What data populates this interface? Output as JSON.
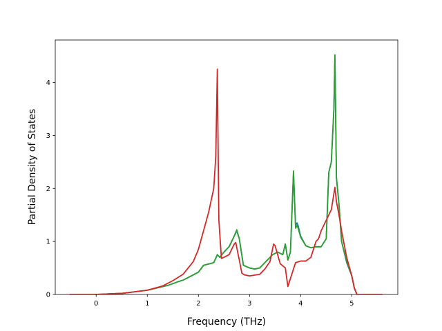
{
  "chart_data": {
    "type": "line",
    "title": "",
    "xlabel": "Frequency (THz)",
    "ylabel": "Partial Density of States",
    "xlim": [
      -0.8,
      5.9
    ],
    "ylim": [
      0,
      4.8
    ],
    "xticks": [
      0,
      1,
      2,
      3,
      4,
      5
    ],
    "yticks": [
      0,
      1,
      2,
      3,
      4
    ],
    "xtick_labels": [
      "0",
      "1",
      "2",
      "3",
      "4",
      "5"
    ],
    "ytick_labels": [
      "0",
      "1",
      "2",
      "3",
      "4"
    ],
    "grid": false,
    "legend": false,
    "series": [
      {
        "color": "#1f77b4",
        "x": [
          -0.52,
          0.0,
          0.5,
          1.0,
          1.4,
          1.6,
          1.7,
          1.8,
          2.0,
          2.1,
          2.3,
          2.37,
          2.42,
          2.5,
          2.6,
          2.7,
          2.75,
          2.8,
          2.88,
          3.0,
          3.1,
          3.2,
          3.3,
          3.45,
          3.55,
          3.65,
          3.7,
          3.75,
          3.8,
          3.86,
          3.9,
          3.93,
          3.95,
          4.0,
          4.1,
          4.2,
          4.3,
          4.4,
          4.5,
          4.55,
          4.6,
          4.65,
          4.67,
          4.7,
          4.75,
          4.8,
          4.9,
          5.0,
          5.05,
          5.1,
          5.6
        ],
        "y": [
          0.0,
          0.0,
          0.02,
          0.08,
          0.17,
          0.24,
          0.27,
          0.32,
          0.42,
          0.55,
          0.6,
          0.75,
          0.7,
          0.8,
          0.9,
          1.1,
          1.2,
          1.05,
          0.55,
          0.5,
          0.48,
          0.5,
          0.6,
          0.75,
          0.8,
          0.75,
          0.95,
          0.65,
          0.8,
          2.3,
          1.3,
          1.35,
          1.3,
          1.1,
          0.92,
          0.88,
          0.9,
          0.9,
          1.05,
          2.3,
          2.5,
          3.5,
          4.5,
          2.2,
          1.7,
          1.0,
          0.6,
          0.35,
          0.12,
          0.0,
          0.0
        ]
      },
      {
        "color": "#2ca02c",
        "x": [
          -0.52,
          0.0,
          0.5,
          1.0,
          1.4,
          1.6,
          1.7,
          1.8,
          2.0,
          2.1,
          2.3,
          2.37,
          2.42,
          2.5,
          2.6,
          2.7,
          2.75,
          2.8,
          2.88,
          3.0,
          3.1,
          3.2,
          3.3,
          3.45,
          3.55,
          3.65,
          3.7,
          3.75,
          3.8,
          3.86,
          3.9,
          3.93,
          3.95,
          4.0,
          4.1,
          4.2,
          4.3,
          4.4,
          4.5,
          4.55,
          4.6,
          4.65,
          4.67,
          4.7,
          4.75,
          4.8,
          4.9,
          5.0,
          5.05,
          5.1,
          5.6
        ],
        "y": [
          0.0,
          0.0,
          0.02,
          0.08,
          0.17,
          0.24,
          0.27,
          0.32,
          0.42,
          0.55,
          0.6,
          0.75,
          0.7,
          0.8,
          0.9,
          1.1,
          1.22,
          1.05,
          0.55,
          0.5,
          0.48,
          0.5,
          0.6,
          0.75,
          0.8,
          0.75,
          0.95,
          0.65,
          0.8,
          2.33,
          1.25,
          1.3,
          1.25,
          1.08,
          0.92,
          0.88,
          0.9,
          0.9,
          1.05,
          2.3,
          2.5,
          3.5,
          4.52,
          2.2,
          1.7,
          1.0,
          0.62,
          0.35,
          0.12,
          0.0,
          0.0
        ]
      },
      {
        "color": "#d62728",
        "x": [
          -0.52,
          0.0,
          0.5,
          1.0,
          1.3,
          1.5,
          1.7,
          1.8,
          1.9,
          2.0,
          2.1,
          2.2,
          2.3,
          2.34,
          2.37,
          2.4,
          2.45,
          2.5,
          2.6,
          2.7,
          2.73,
          2.8,
          2.85,
          2.9,
          3.0,
          3.2,
          3.3,
          3.4,
          3.47,
          3.5,
          3.6,
          3.7,
          3.75,
          3.8,
          3.85,
          3.9,
          4.0,
          4.1,
          4.2,
          4.3,
          4.35,
          4.4,
          4.5,
          4.6,
          4.67,
          4.7,
          4.75,
          4.8,
          4.9,
          5.0,
          5.05,
          5.1,
          5.6
        ],
        "y": [
          0.0,
          0.0,
          0.02,
          0.08,
          0.16,
          0.26,
          0.38,
          0.5,
          0.62,
          0.85,
          1.2,
          1.55,
          2.0,
          2.6,
          4.25,
          1.4,
          0.68,
          0.7,
          0.75,
          0.95,
          0.98,
          0.65,
          0.4,
          0.37,
          0.35,
          0.38,
          0.48,
          0.62,
          0.95,
          0.92,
          0.58,
          0.5,
          0.15,
          0.3,
          0.45,
          0.6,
          0.63,
          0.63,
          0.7,
          1.0,
          1.05,
          1.2,
          1.4,
          1.6,
          2.02,
          1.75,
          1.5,
          1.2,
          0.7,
          0.35,
          0.12,
          0.0,
          0.0
        ]
      }
    ]
  }
}
